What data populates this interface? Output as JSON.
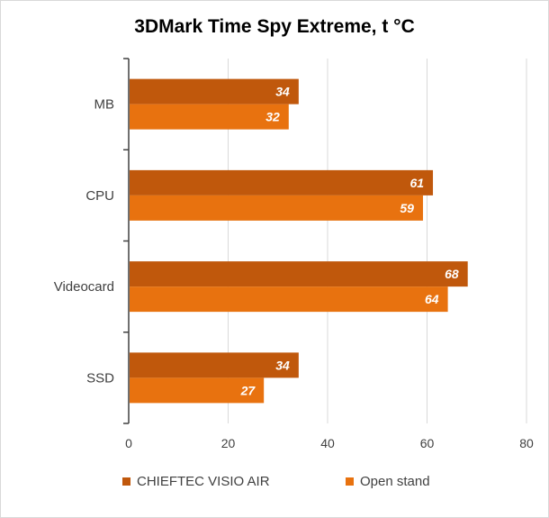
{
  "chart_data": {
    "type": "bar",
    "orientation": "horizontal",
    "title": "3DMark Time Spy Extreme, t °C",
    "categories": [
      "MB",
      "CPU",
      "Videocard",
      "SSD"
    ],
    "series": [
      {
        "name": "CHIEFTEC VISIO AIR",
        "color": "#c0580c",
        "values": [
          34,
          61,
          68,
          34
        ]
      },
      {
        "name": "Open stand",
        "color": "#e8720f",
        "values": [
          32,
          59,
          64,
          27
        ]
      }
    ],
    "xlim": [
      0,
      80
    ],
    "xticks": [
      0,
      20,
      40,
      60,
      80
    ],
    "grid": true,
    "legend_position": "bottom",
    "data_labels": true
  }
}
